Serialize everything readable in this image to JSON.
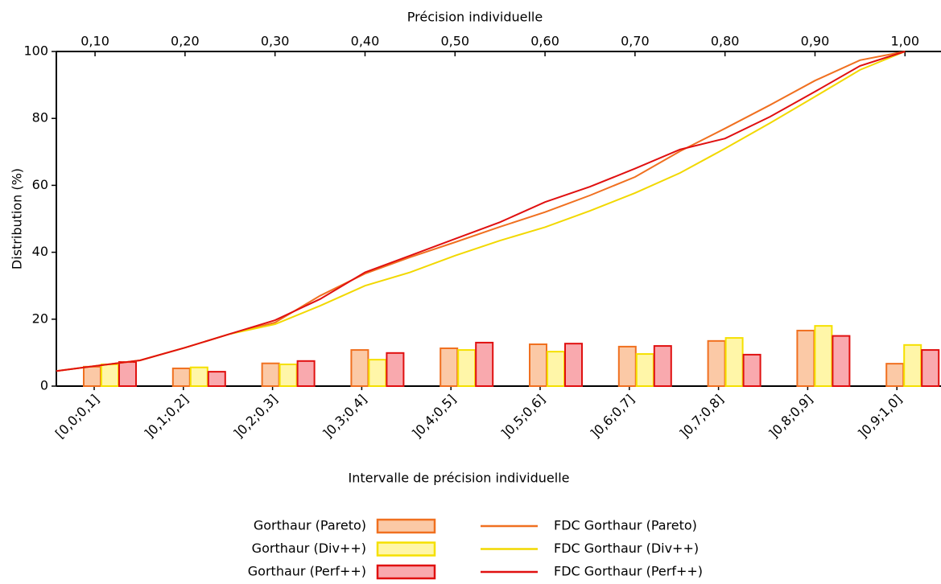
{
  "chart_data": {
    "type": "bar+line",
    "xlabel_top": "Précision individuelle",
    "xlabel": "Intervalle de précision individuelle",
    "ylabel": "Distribution (%)",
    "categories": [
      "[0,0;0,1]",
      "]0,1;0,2]",
      "]0,2;0,3]",
      "]0,3;0,4]",
      "]0,4;0,5]",
      "]0,5;0,6]",
      "]0,6;0,7]",
      "]0,7;0,8]",
      "]0,8;0,9]",
      "]0,9;1,0]"
    ],
    "series": [
      {
        "name": "Gorthaur (Pareto)",
        "color": "#fbc9a6",
        "edge": "#f07020",
        "values": [
          5.8,
          5.3,
          6.8,
          10.8,
          11.3,
          12.5,
          11.8,
          13.5,
          16.6,
          6.7
        ]
      },
      {
        "name": "Gorthaur (Div++)",
        "color": "#fff6a8",
        "edge": "#f5e000",
        "values": [
          6.5,
          5.6,
          6.5,
          7.9,
          10.8,
          10.3,
          9.6,
          14.4,
          18.0,
          12.3
        ]
      },
      {
        "name": "Gorthaur (Perf++)",
        "color": "#f9a9ae",
        "edge": "#e01010",
        "values": [
          7.2,
          4.3,
          7.5,
          9.9,
          13.0,
          12.7,
          12.0,
          9.4,
          15.0,
          10.8
        ]
      }
    ],
    "x": [
      0.057,
      0.1,
      0.15,
      0.2,
      0.25,
      0.3,
      0.35,
      0.4,
      0.45,
      0.5,
      0.55,
      0.6,
      0.65,
      0.7,
      0.75,
      0.8,
      0.85,
      0.9,
      0.95,
      1.0
    ],
    "line_series": [
      {
        "name": "FDC Gorthaur (Pareto)",
        "color": "#f07020",
        "values": [
          4.5,
          6,
          7.7,
          11.5,
          15.6,
          19,
          27,
          33.6,
          38.5,
          43,
          47.6,
          52,
          57,
          62.5,
          70.2,
          77,
          84,
          91.3,
          97.4,
          100
        ]
      },
      {
        "name": "FDC Gorthaur (Div++)",
        "color": "#f2d800",
        "values": [
          4.5,
          6,
          7.7,
          11.5,
          15.6,
          18.5,
          24,
          30,
          34,
          39,
          43.5,
          47.5,
          52.4,
          57.7,
          63.7,
          71,
          78.6,
          86.5,
          94.5,
          100
        ]
      },
      {
        "name": "FDC Gorthaur (Perf++)",
        "color": "#e01010",
        "values": [
          4.5,
          6,
          7.7,
          11.5,
          15.6,
          19.7,
          26,
          34,
          39,
          44,
          49,
          55,
          59.6,
          65,
          70.7,
          74,
          80.5,
          88,
          95.7,
          100
        ]
      }
    ],
    "xlim": [
      0.057,
      1.04
    ],
    "xticks": [
      {
        "value": 0.1,
        "label": "0,10"
      },
      {
        "value": 0.2,
        "label": "0,20"
      },
      {
        "value": 0.3,
        "label": "0,30"
      },
      {
        "value": 0.4,
        "label": "0,40"
      },
      {
        "value": 0.5,
        "label": "0,50"
      },
      {
        "value": 0.6,
        "label": "0,60"
      },
      {
        "value": 0.7,
        "label": "0,70"
      },
      {
        "value": 0.8,
        "label": "0,80"
      },
      {
        "value": 0.9,
        "label": "0,90"
      },
      {
        "value": 1.0,
        "label": "1,00"
      }
    ],
    "ylim": [
      0,
      100
    ],
    "yticks": [
      0,
      20,
      40,
      60,
      80,
      100
    ]
  }
}
